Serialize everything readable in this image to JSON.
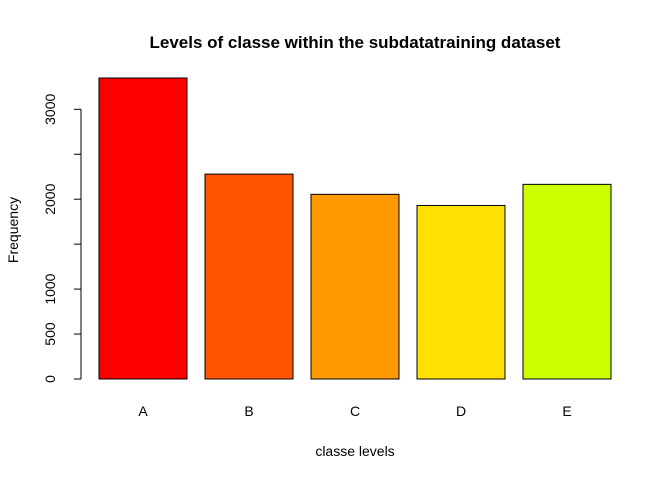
{
  "chart_data": {
    "type": "bar",
    "title": "Levels of classe within the subdatatraining dataset",
    "xlabel": "classe levels",
    "ylabel": "Frequency",
    "categories": [
      "A",
      "B",
      "C",
      "D",
      "E"
    ],
    "values": [
      3348,
      2279,
      2054,
      1930,
      2165
    ],
    "colors": [
      "#FF0000",
      "#FF5500",
      "#FF9900",
      "#FFE100",
      "#CCFF00"
    ],
    "yticks": [
      0,
      500,
      1000,
      2000,
      3000
    ],
    "ylim": [
      0,
      3348
    ],
    "grid": false,
    "legend": "none"
  }
}
